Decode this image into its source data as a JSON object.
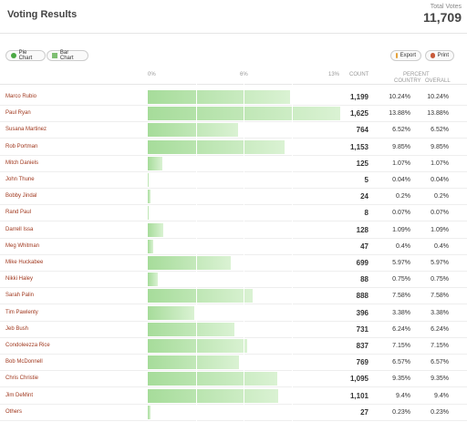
{
  "header": {
    "title": "Voting Results",
    "total_votes_label": "Total Votes",
    "total_votes_value": "11,709"
  },
  "toolbar": {
    "pie_chart_label": "Pie Chart",
    "bar_chart_label": "Bar Chart",
    "export_label": "Export",
    "print_label": "Print"
  },
  "columns": {
    "scale_min": "0%",
    "scale_mid": "6%",
    "scale_max": "13%",
    "count": "COUNT",
    "percent": "PERCENT",
    "country": "COUNTRY",
    "overall": "OVERALL"
  },
  "chart_data": {
    "type": "bar",
    "xlim": [
      0,
      13
    ],
    "rows": [
      {
        "name": "Marco Rubio",
        "count": "1,199",
        "country": "10.24%",
        "overall": "10.24%",
        "value": 10.24
      },
      {
        "name": "Paul Ryan",
        "count": "1,625",
        "country": "13.88%",
        "overall": "13.88%",
        "value": 13.88
      },
      {
        "name": "Susana Martinez",
        "count": "764",
        "country": "6.52%",
        "overall": "6.52%",
        "value": 6.52
      },
      {
        "name": "Rob Portman",
        "count": "1,153",
        "country": "9.85%",
        "overall": "9.85%",
        "value": 9.85
      },
      {
        "name": "Mitch Daniels",
        "count": "125",
        "country": "1.07%",
        "overall": "1.07%",
        "value": 1.07
      },
      {
        "name": "John Thune",
        "count": "5",
        "country": "0.04%",
        "overall": "0.04%",
        "value": 0.04
      },
      {
        "name": "Bobby Jindal",
        "count": "24",
        "country": "0.2%",
        "overall": "0.2%",
        "value": 0.2
      },
      {
        "name": "Rand Paul",
        "count": "8",
        "country": "0.07%",
        "overall": "0.07%",
        "value": 0.07
      },
      {
        "name": "Darrell Issa",
        "count": "128",
        "country": "1.09%",
        "overall": "1.09%",
        "value": 1.09
      },
      {
        "name": "Meg Whitman",
        "count": "47",
        "country": "0.4%",
        "overall": "0.4%",
        "value": 0.4
      },
      {
        "name": "Mike Huckabee",
        "count": "699",
        "country": "5.97%",
        "overall": "5.97%",
        "value": 5.97
      },
      {
        "name": "Nikki Haley",
        "count": "88",
        "country": "0.75%",
        "overall": "0.75%",
        "value": 0.75
      },
      {
        "name": "Sarah Palin",
        "count": "888",
        "country": "7.58%",
        "overall": "7.58%",
        "value": 7.58
      },
      {
        "name": "Tim Pawlenty",
        "count": "396",
        "country": "3.38%",
        "overall": "3.38%",
        "value": 3.38
      },
      {
        "name": "Jeb Bush",
        "count": "731",
        "country": "6.24%",
        "overall": "6.24%",
        "value": 6.24
      },
      {
        "name": "Condoleezza Rice",
        "count": "837",
        "country": "7.15%",
        "overall": "7.15%",
        "value": 7.15
      },
      {
        "name": "Bob McDonnell",
        "count": "769",
        "country": "6.57%",
        "overall": "6.57%",
        "value": 6.57
      },
      {
        "name": "Chris Christie",
        "count": "1,095",
        "country": "9.35%",
        "overall": "9.35%",
        "value": 9.35
      },
      {
        "name": "Jim DeMint",
        "count": "1,101",
        "country": "9.4%",
        "overall": "9.4%",
        "value": 9.4
      },
      {
        "name": "Others",
        "count": "27",
        "country": "0.23%",
        "overall": "0.23%",
        "value": 0.23
      }
    ]
  },
  "colors": {
    "name_text": "#a0381e",
    "bar_start": "#a6dc9a",
    "bar_end": "#daf2d3"
  }
}
